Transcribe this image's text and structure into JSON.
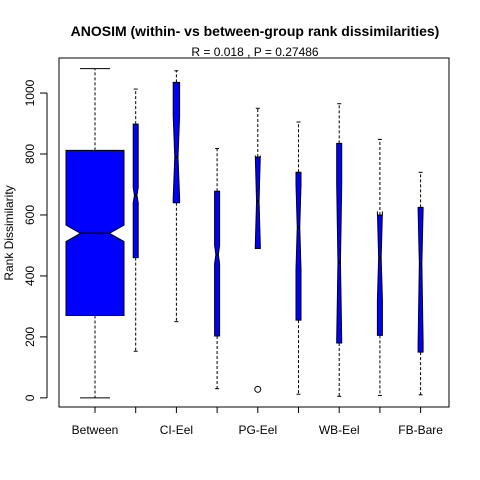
{
  "chart_data": {
    "type": "box",
    "title": "ANOSIM (within- vs between-group rank dissimilarities)",
    "subtitle": "R =  0.018 ,  P =  0.27486",
    "xlabel": "",
    "ylabel": "Rank Dissimilarity",
    "ylim": [
      -30,
      1115
    ],
    "yticks": [
      0,
      200,
      400,
      600,
      800,
      1000
    ],
    "groups": [
      {
        "label": "Between",
        "min": 0,
        "q1": 270,
        "median": 540,
        "q3": 812,
        "max": 1080,
        "notch_low": 513,
        "notch_high": 567,
        "outliers": []
      },
      {
        "label": "",
        "min": 153,
        "q1": 460,
        "median": 665,
        "q3": 898,
        "max": 1013,
        "notch_low": 640,
        "notch_high": 690,
        "outliers": []
      },
      {
        "label": "CI-Eel",
        "min": 250,
        "q1": 640,
        "median": 790,
        "q3": 1035,
        "max": 1073,
        "notch_low": 655,
        "notch_high": 925,
        "outliers": []
      },
      {
        "label": "",
        "min": 30,
        "q1": 203,
        "median": 470,
        "q3": 678,
        "max": 818,
        "notch_low": 440,
        "notch_high": 500,
        "outliers": []
      },
      {
        "label": "PG-Eel",
        "min": 490,
        "q1": 490,
        "median": 645,
        "q3": 790,
        "max": 950,
        "notch_low": 500,
        "notch_high": 795,
        "outliers": [
          28
        ]
      },
      {
        "label": "",
        "min": 12,
        "q1": 255,
        "median": 560,
        "q3": 740,
        "max": 905,
        "notch_low": 420,
        "notch_high": 700,
        "outliers": []
      },
      {
        "label": "WB-Eel",
        "min": 5,
        "q1": 180,
        "median": 445,
        "q3": 835,
        "max": 965,
        "notch_low": 190,
        "notch_high": 700,
        "outliers": []
      },
      {
        "label": "",
        "min": 8,
        "q1": 205,
        "median": 460,
        "q3": 600,
        "max": 848,
        "notch_low": 320,
        "notch_high": 612,
        "outliers": []
      },
      {
        "label": "FB-Bare",
        "min": 10,
        "q1": 150,
        "median": 440,
        "q3": 625,
        "max": 740,
        "notch_low": 180,
        "notch_high": 620,
        "outliers": []
      }
    ],
    "colors": {
      "box_fill": "#0000ff",
      "box_border": "#000000",
      "whisker": "#000000"
    },
    "grid": false,
    "legend": "none"
  }
}
